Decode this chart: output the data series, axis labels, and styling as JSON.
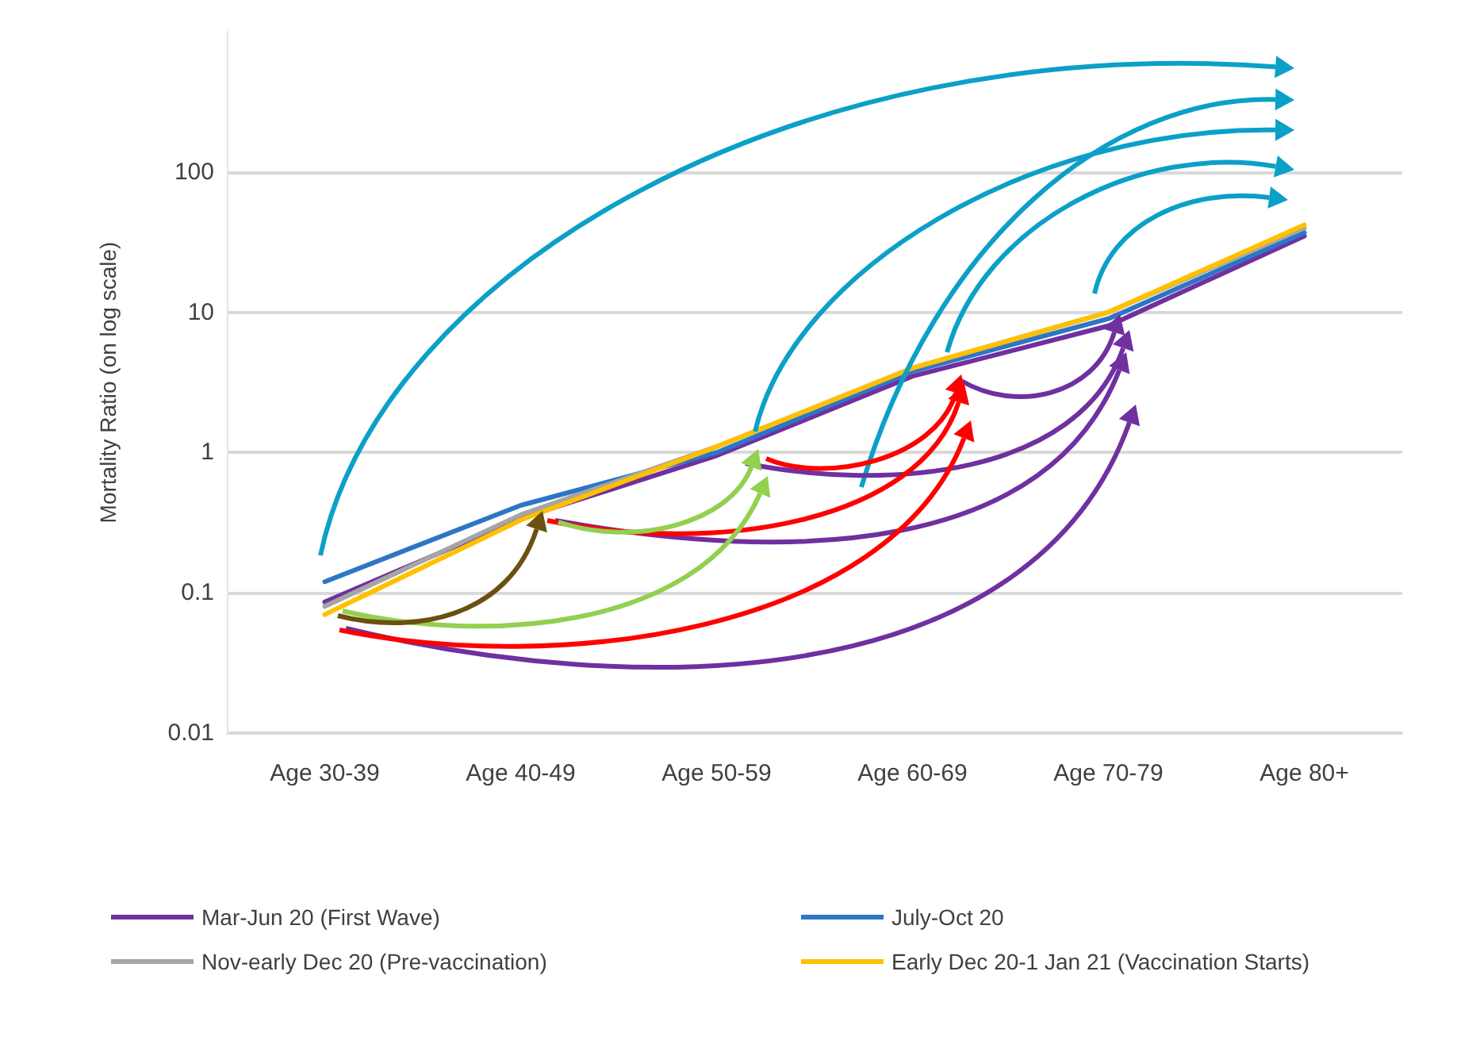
{
  "chart_data": {
    "type": "line",
    "ylabel": "Mortality Ratio (on log scale)",
    "categories": [
      "Age 30-39",
      "Age 40-49",
      "Age 50-59",
      "Age 60-69",
      "Age 70-79",
      "Age 80+"
    ],
    "series": [
      {
        "name": "Mar-Jun 20 (First Wave)",
        "color": "#7030a0",
        "values": [
          0.086,
          0.34,
          0.95,
          3.5,
          8,
          35
        ]
      },
      {
        "name": "July-Oct 20",
        "color": "#2e75c6",
        "values": [
          0.12,
          0.42,
          1.0,
          3.8,
          9,
          37
        ]
      },
      {
        "name": "Nov-early Dec 20 (Pre-vaccination)",
        "color": "#a5a5a5",
        "values": [
          0.08,
          0.36,
          1.1,
          4,
          10,
          40
        ]
      },
      {
        "name": "Early Dec 20-1 Jan 21 (Vaccination Starts)",
        "color": "#ffc000",
        "values": [
          0.07,
          0.33,
          1.1,
          4,
          10,
          42
        ]
      }
    ],
    "log": "y",
    "ylim": [
      0.01,
      1000
    ],
    "yticks": [
      0.01,
      0.1,
      1,
      10,
      100
    ],
    "grid": "y",
    "legend": "bottom",
    "marker": "none",
    "line_style": "solid"
  }
}
